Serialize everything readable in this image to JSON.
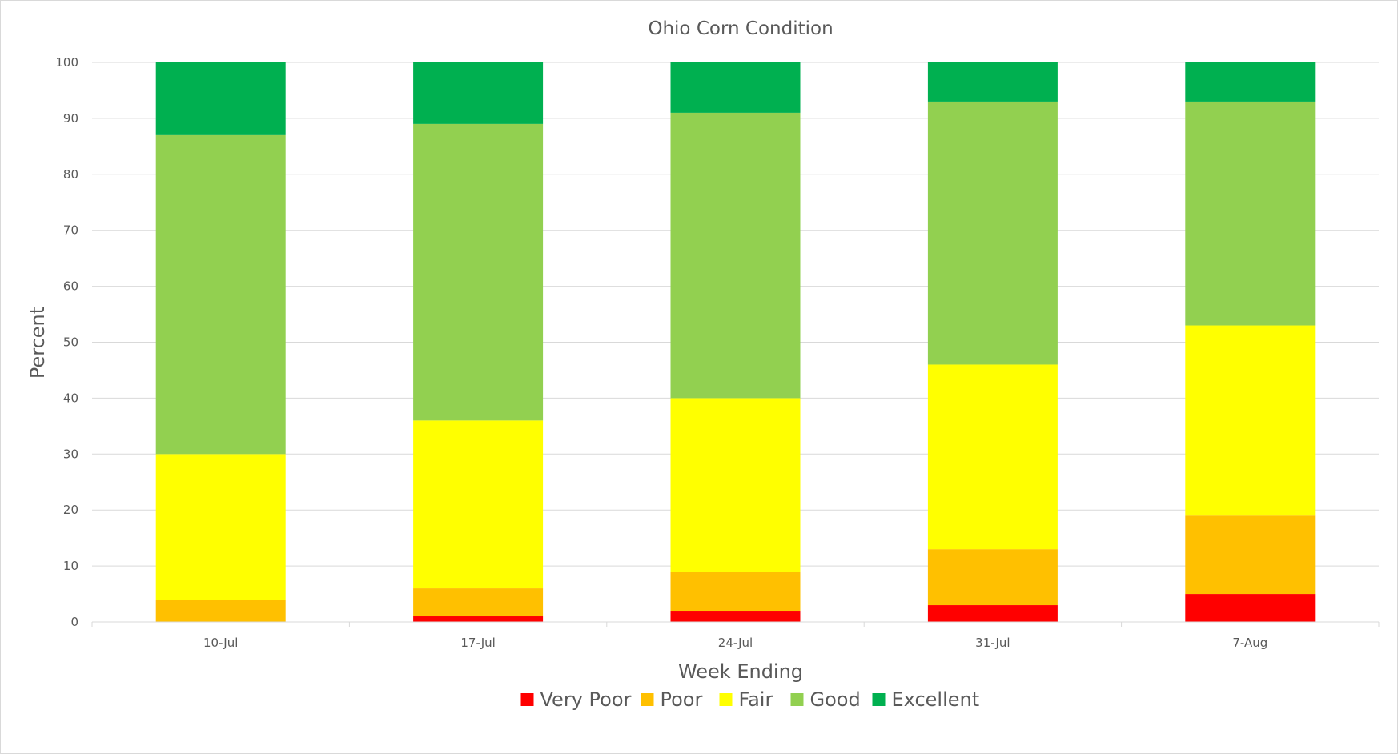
{
  "chart_data": {
    "type": "bar",
    "stacked": true,
    "title": "Ohio Corn Condition",
    "xlabel": "Week Ending",
    "ylabel": "Percent",
    "ylim": [
      0,
      100
    ],
    "yticks": [
      0,
      10,
      20,
      30,
      40,
      50,
      60,
      70,
      80,
      90,
      100
    ],
    "grid": true,
    "legend_position": "bottom",
    "categories": [
      "10-Jul",
      "17-Jul",
      "24-Jul",
      "31-Jul",
      "7-Aug"
    ],
    "series": [
      {
        "name": "Very Poor",
        "color": "#ff0000",
        "values": [
          0,
          1,
          2,
          3,
          5
        ]
      },
      {
        "name": "Poor",
        "color": "#ffc000",
        "values": [
          4,
          5,
          7,
          10,
          14
        ]
      },
      {
        "name": "Fair",
        "color": "#ffff00",
        "values": [
          26,
          30,
          31,
          33,
          34
        ]
      },
      {
        "name": "Good",
        "color": "#92d050",
        "values": [
          57,
          53,
          51,
          47,
          40
        ]
      },
      {
        "name": "Excellent",
        "color": "#00b050",
        "values": [
          13,
          11,
          9,
          7,
          7
        ]
      }
    ]
  }
}
